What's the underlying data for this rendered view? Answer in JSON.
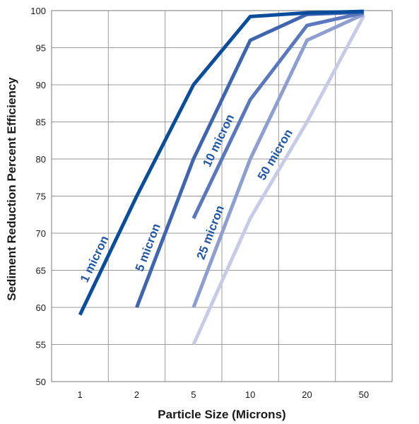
{
  "chart_data": {
    "type": "line",
    "title": "",
    "xlabel": "Particle Size (Microns)",
    "ylabel": "Sediment Reduction Percent Efficiency",
    "categories": [
      "1",
      "2",
      "5",
      "10",
      "20",
      "50"
    ],
    "ylim": [
      50,
      100
    ],
    "yticks": [
      50,
      55,
      60,
      65,
      70,
      75,
      80,
      85,
      90,
      95,
      100
    ],
    "grid": true,
    "legend": "inline labels along lines",
    "series": [
      {
        "name": "1 micron",
        "color": "#0a4d9c",
        "values": [
          59,
          75,
          90,
          99.2,
          99.7,
          99.9
        ]
      },
      {
        "name": "5 micron",
        "color": "#3f64b0",
        "values": [
          null,
          60,
          80,
          96,
          99.5,
          99.8
        ]
      },
      {
        "name": "10 micron",
        "color": "#5b77bd",
        "values": [
          null,
          null,
          72,
          88,
          98,
          99.7
        ]
      },
      {
        "name": "25 micron",
        "color": "#8f9ed0",
        "values": [
          null,
          null,
          60,
          80,
          96,
          99.5
        ]
      },
      {
        "name": "50 micron",
        "color": "#c6cce8",
        "values": [
          null,
          null,
          55,
          72,
          85,
          99.3
        ]
      }
    ]
  }
}
